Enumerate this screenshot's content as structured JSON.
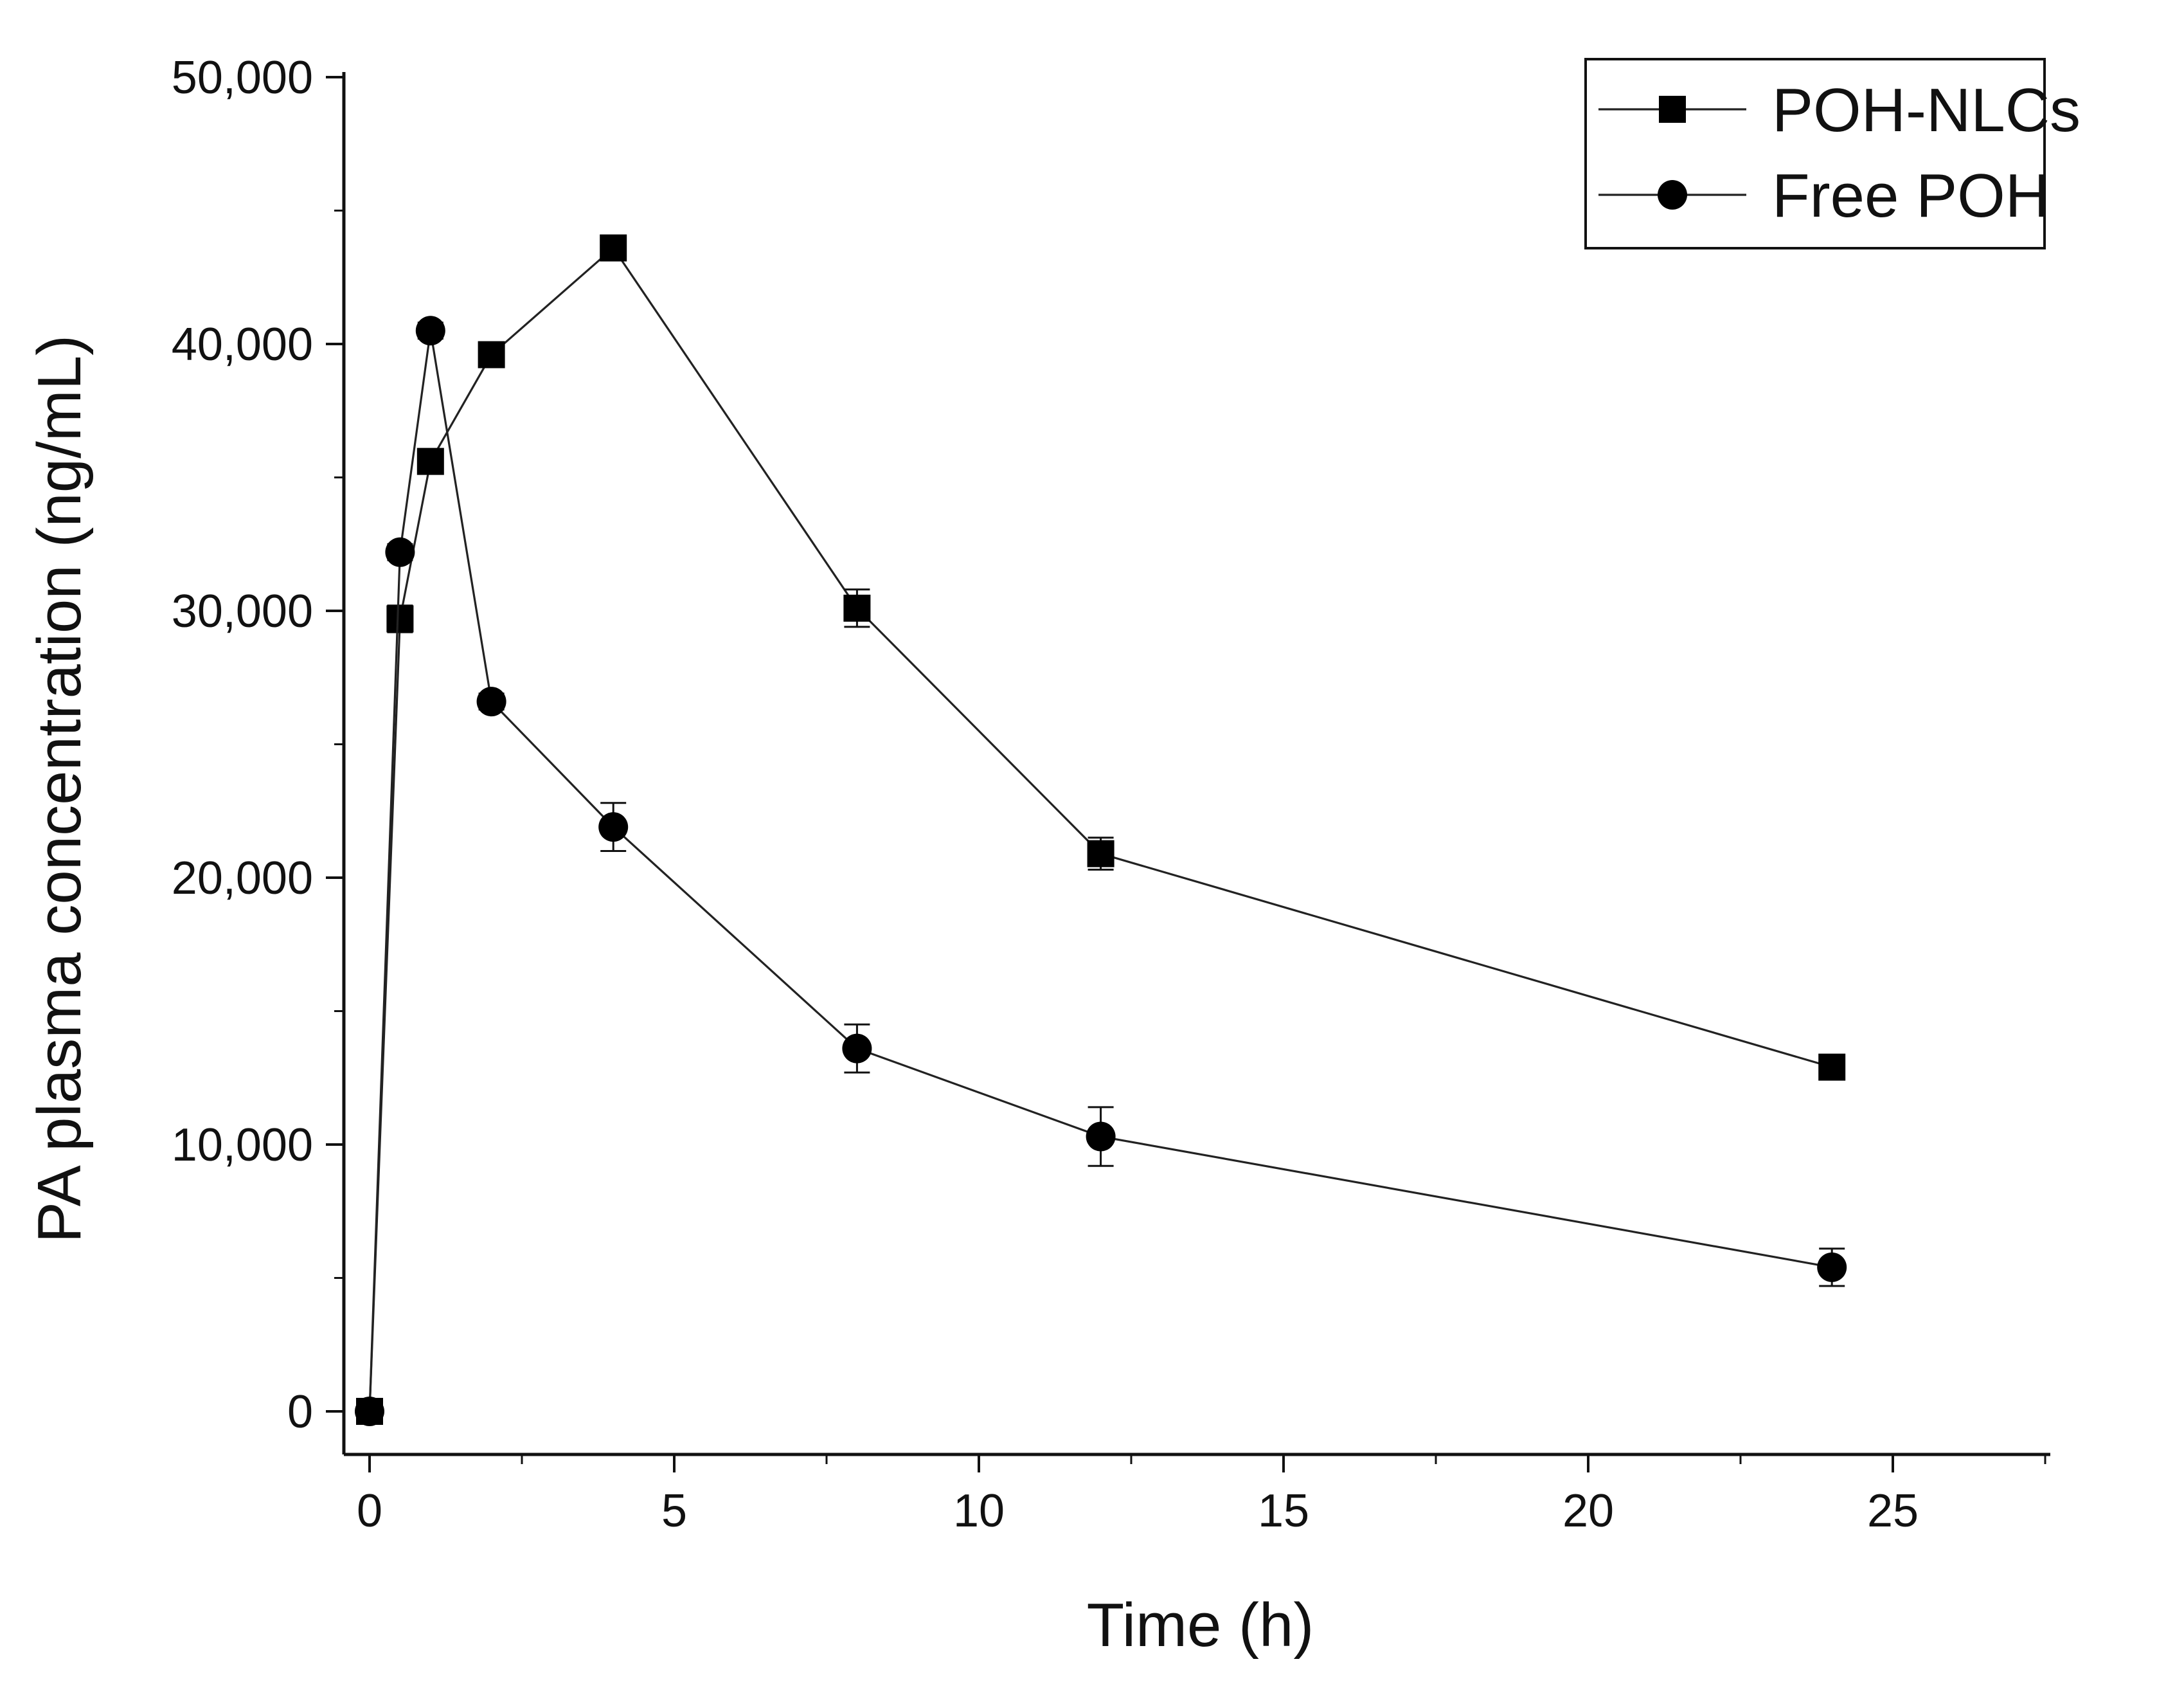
{
  "chart_data": {
    "type": "line",
    "title": "",
    "xlabel": "Time (h)",
    "ylabel": "PA plasma concentration (ng/mL)",
    "xlim": [
      -0.5,
      27.5
    ],
    "ylim": [
      -1700,
      50000
    ],
    "x_ticks": [
      0,
      5,
      10,
      15,
      20,
      25
    ],
    "x_tick_labels": [
      "0",
      "5",
      "10",
      "15",
      "20",
      "25"
    ],
    "y_ticks": [
      0,
      10000,
      20000,
      30000,
      40000,
      50000
    ],
    "y_tick_labels": [
      "0",
      "10,000",
      "20,000",
      "30,000",
      "40,000",
      "50,000"
    ],
    "grid": false,
    "legend_position": "top-right",
    "series": [
      {
        "name": "POH-NLCs",
        "marker": "square",
        "x": [
          0,
          0.5,
          1,
          2,
          4,
          8,
          12,
          24
        ],
        "values": [
          0,
          29700,
          35600,
          39600,
          43600,
          30100,
          20900,
          12900
        ],
        "errors": [
          0,
          500,
          400,
          300,
          300,
          700,
          600,
          400
        ]
      },
      {
        "name": "Free POH",
        "marker": "circle",
        "x": [
          0,
          0.5,
          1,
          2,
          4,
          8,
          12,
          24
        ],
        "values": [
          0,
          32200,
          40500,
          26600,
          21900,
          13600,
          10300,
          5400
        ],
        "errors": [
          0,
          300,
          300,
          300,
          900,
          900,
          1100,
          700
        ]
      }
    ]
  }
}
